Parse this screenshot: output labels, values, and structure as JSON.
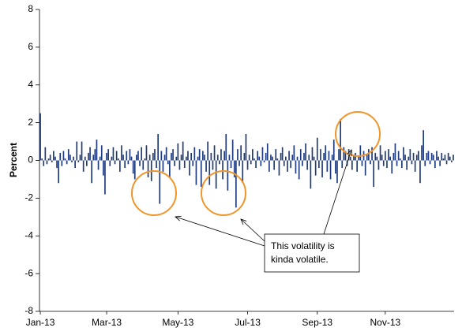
{
  "chart_data": {
    "type": "bar",
    "ylabel": "Percent",
    "color": "#1f3b7b",
    "ylim": [
      -8,
      8
    ],
    "yticks": [
      -8,
      -6,
      -4,
      -2,
      0,
      2,
      4,
      6,
      8
    ],
    "annotation": [
      "This volatility is",
      "kinda volatile."
    ],
    "categories": [
      "Jan-13",
      null,
      null,
      null,
      null,
      null,
      null,
      null,
      null,
      null,
      null,
      null,
      null,
      null,
      null,
      null,
      null,
      null,
      null,
      null,
      null,
      null,
      null,
      null,
      null,
      null,
      null,
      null,
      null,
      null,
      null,
      null,
      null,
      null,
      null,
      null,
      null,
      null,
      null,
      null,
      "Mar-13",
      null,
      null,
      null,
      null,
      null,
      null,
      null,
      null,
      null,
      null,
      null,
      null,
      null,
      null,
      null,
      null,
      null,
      null,
      null,
      null,
      null,
      null,
      null,
      null,
      null,
      null,
      null,
      null,
      null,
      null,
      null,
      null,
      null,
      null,
      null,
      null,
      null,
      null,
      null,
      null,
      null,
      null,
      "May-13",
      null,
      null,
      null,
      null,
      null,
      null,
      null,
      null,
      null,
      null,
      null,
      null,
      null,
      null,
      null,
      null,
      null,
      null,
      null,
      null,
      null,
      null,
      null,
      null,
      null,
      null,
      null,
      null,
      null,
      null,
      null,
      null,
      null,
      null,
      null,
      null,
      null,
      null,
      null,
      null,
      null,
      "Jul-13",
      null,
      null,
      null,
      null,
      null,
      null,
      null,
      null,
      null,
      null,
      null,
      null,
      null,
      null,
      null,
      null,
      null,
      null,
      null,
      null,
      null,
      null,
      null,
      null,
      null,
      null,
      null,
      null,
      null,
      null,
      null,
      null,
      null,
      null,
      null,
      null,
      null,
      null,
      null,
      null,
      null,
      "Sep-13",
      null,
      null,
      null,
      null,
      null,
      null,
      null,
      null,
      null,
      null,
      null,
      null,
      null,
      null,
      null,
      null,
      null,
      null,
      null,
      null,
      null,
      null,
      null,
      null,
      null,
      null,
      null,
      null,
      null,
      null,
      null,
      null,
      null,
      null,
      null,
      null,
      null,
      null,
      null,
      null,
      "Nov-13",
      null,
      null,
      null,
      null,
      null,
      null,
      null,
      null,
      null,
      null,
      null,
      null,
      null,
      null,
      null,
      null,
      null,
      null,
      null,
      null,
      null,
      null,
      null,
      null,
      null,
      null,
      null,
      null,
      null,
      null,
      null,
      null,
      null,
      null,
      null,
      null,
      null,
      null,
      null,
      null,
      null
    ],
    "values": [
      2.5,
      0.1,
      -0.3,
      0.7,
      -0.2,
      0.1,
      0.3,
      -0.1,
      0.5,
      0.2,
      -0.4,
      -1.2,
      0.4,
      -0.3,
      0.5,
      0.1,
      -0.2,
      0.6,
      0.3,
      -0.1,
      0.2,
      -0.4,
      1.0,
      -0.1,
      0.3,
      1.0,
      -0.6,
      0.2,
      -0.3,
      0.4,
      0.7,
      -1.2,
      0.3,
      0.6,
      1.1,
      -0.5,
      0.2,
      0.8,
      -0.8,
      -1.8,
      0.4,
      0.6,
      -0.3,
      0.2,
      0.7,
      -0.2,
      0.5,
      0.1,
      -0.6,
      0.8,
      0.3,
      -0.4,
      0.5,
      -0.2,
      0.6,
      0.2,
      -0.7,
      -1.0,
      0.3,
      0.5,
      -0.3,
      0.7,
      -0.5,
      0.1,
      0.8,
      -0.9,
      0.3,
      -1.1,
      0.4,
      0.6,
      -0.4,
      1.4,
      -2.3,
      0.5,
      -0.6,
      0.3,
      0.7,
      -0.2,
      -0.9,
      0.4,
      0.6,
      -0.3,
      0.2,
      0.9,
      -0.5,
      0.3,
      1.0,
      -0.4,
      0.2,
      0.5,
      -0.8,
      0.4,
      -0.3,
      0.7,
      -1.3,
      0.2,
      0.6,
      -1.4,
      0.5,
      0.3,
      -0.6,
      1.0,
      -1.3,
      0.4,
      -0.5,
      0.8,
      -1.5,
      0.3,
      -0.2,
      0.6,
      -1.0,
      0.5,
      1.4,
      -1.6,
      0.3,
      -0.4,
      1.1,
      -0.9,
      -2.5,
      0.6,
      -0.3,
      0.8,
      -1.2,
      0.4,
      1.4,
      -0.5,
      0.3,
      -0.2,
      0.6,
      0.1,
      -0.4,
      0.5,
      0.2,
      -0.3,
      0.7,
      -0.1,
      0.4,
      0.9,
      -0.6,
      0.3,
      0.2,
      -0.5,
      0.6,
      0.1,
      -0.8,
      0.4,
      0.7,
      -0.3,
      0.2,
      -0.6,
      0.5,
      -0.4,
      0.3,
      0.8,
      -0.7,
      0.2,
      -1.0,
      0.6,
      -0.3,
      0.4,
      0.9,
      -0.5,
      0.3,
      -1.5,
      0.7,
      0.2,
      -0.8,
      1.2,
      -0.4,
      0.6,
      -0.9,
      0.4,
      0.8,
      -0.6,
      0.5,
      -1.0,
      0.3,
      1.1,
      -0.7,
      -1.2,
      0.6,
      2.2,
      -0.4,
      0.7,
      0.5,
      -0.3,
      0.6,
      0.2,
      -0.5,
      0.3,
      0.4,
      -0.6,
      0.2,
      0.8,
      -0.3,
      0.5,
      -0.8,
      0.3,
      0.6,
      -0.2,
      0.7,
      -1.4,
      0.4,
      0.2,
      -0.5,
      0.8,
      0.3,
      -0.3,
      0.5,
      -0.4,
      0.6,
      0.2,
      -0.7,
      0.4,
      0.9,
      -0.3,
      0.5,
      0.1,
      -0.4,
      0.7,
      0.3,
      -0.5,
      0.2,
      0.6,
      -0.2,
      0.4,
      -0.6,
      0.3,
      0.5,
      -1.2,
      0.8,
      1.6,
      -0.3,
      0.4,
      0.5,
      -0.2,
      0.4,
      0.3,
      -0.4,
      0.5,
      0.2,
      -0.3,
      0.4,
      0.1,
      0.3,
      -0.2,
      0.4,
      0.2,
      -0.1,
      0.3
    ]
  }
}
